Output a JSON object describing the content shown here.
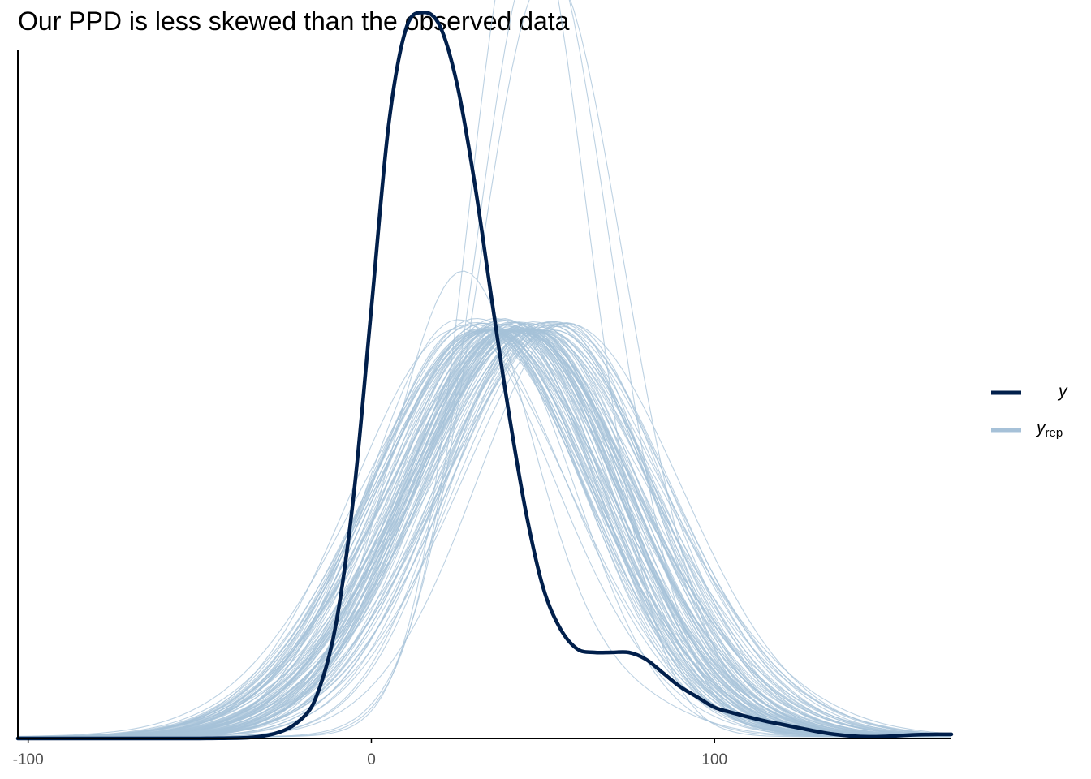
{
  "title": "Our PPD is less skewed than the observed data",
  "legend": {
    "y_label": "y",
    "yrep_label": "y",
    "yrep_sub": "rep"
  },
  "colors": {
    "y": "#011f4b",
    "yrep": "#a6c1d8",
    "axis": "#000000",
    "tick_text": "#4d4d4d"
  },
  "chart_data": {
    "type": "line",
    "title": "Our PPD is less skewed than the observed data",
    "xlim": [
      -103,
      169
    ],
    "ylim": [
      0,
      0.02
    ],
    "x_ticks": [
      -100,
      0,
      100
    ],
    "x_tick_labels": [
      "-100",
      "0",
      "100"
    ],
    "y_axis_labels_shown": false,
    "grid": false,
    "legend_position": "right",
    "series": [
      {
        "name": "y",
        "kind": "observed density",
        "x": [
          -103,
          -50,
          -30,
          -20,
          -15,
          -10,
          -5,
          0,
          5,
          10,
          15,
          20,
          25,
          30,
          35,
          40,
          45,
          50,
          55,
          60,
          65,
          70,
          75,
          80,
          85,
          90,
          95,
          100,
          105,
          110,
          115,
          120,
          125,
          130,
          135,
          140,
          145,
          150,
          155,
          160,
          165,
          169
        ],
        "y": [
          0.0,
          0.0,
          0.0001,
          0.0006,
          0.0015,
          0.0035,
          0.0072,
          0.0125,
          0.0178,
          0.0206,
          0.0211,
          0.0207,
          0.019,
          0.0162,
          0.0128,
          0.0095,
          0.0066,
          0.0044,
          0.0032,
          0.0026,
          0.0025,
          0.0025,
          0.0025,
          0.0023,
          0.0019,
          0.0015,
          0.0012,
          0.0009,
          0.00075,
          0.00062,
          0.0005,
          0.0004,
          0.0003,
          0.0002,
          0.00012,
          7e-05,
          5e-05,
          6e-05,
          9e-05,
          0.00011,
          0.00012,
          0.00012
        ]
      },
      {
        "name": "y",
        "name_sub": "rep",
        "kind": "replicated densities",
        "draws": 100,
        "center_mean": 42,
        "center_sd": 7,
        "sd_mean": 32,
        "sd_spread": 4,
        "peak_min": 0.0118,
        "peak_max": 0.0243
      }
    ]
  }
}
